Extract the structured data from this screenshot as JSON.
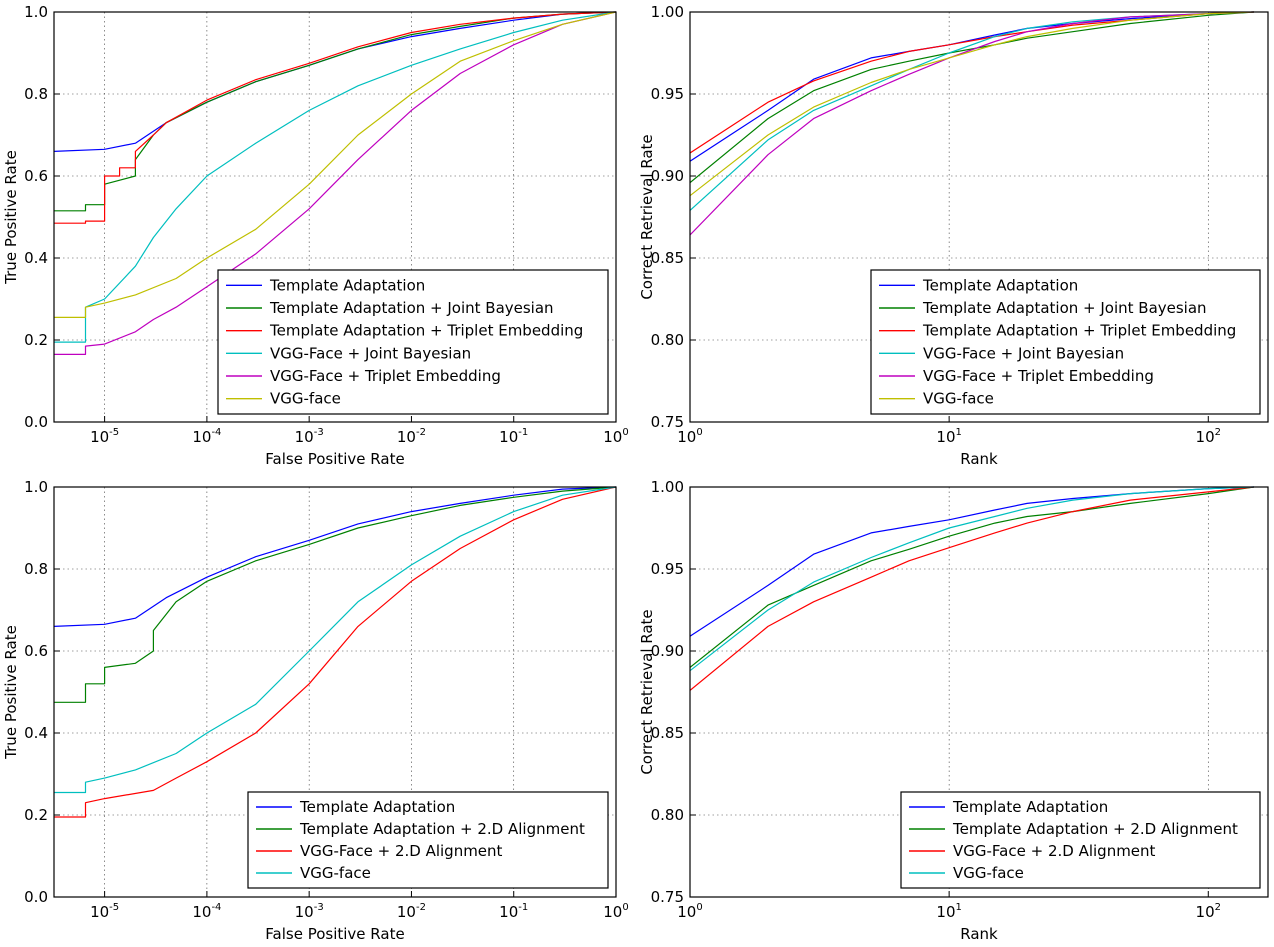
{
  "chart_data": [
    {
      "id": "roc-top",
      "type": "line",
      "xscale": "log",
      "xlim": [
        3.2e-06,
        1
      ],
      "ylim": [
        0,
        1
      ],
      "xticks": [
        {
          "base": "10",
          "exp": "-5"
        },
        {
          "base": "10",
          "exp": "-4"
        },
        {
          "base": "10",
          "exp": "-3"
        },
        {
          "base": "10",
          "exp": "-2"
        },
        {
          "base": "10",
          "exp": "-1"
        },
        {
          "base": "10",
          "exp": "0"
        }
      ],
      "yticks": [
        "0.0",
        "0.2",
        "0.4",
        "0.6",
        "0.8",
        "1.0"
      ],
      "xlabel": "False Positive Rate",
      "ylabel": "True Positive Rate",
      "grid": true,
      "legend": "lower right",
      "series": [
        {
          "name": "Template Adaptation",
          "color": "#0000ff",
          "x": [
            3.2e-06,
            1e-05,
            2e-05,
            4e-05,
            0.0001,
            0.0003,
            0.001,
            0.003,
            0.01,
            0.03,
            0.1,
            0.3,
            1
          ],
          "y": [
            0.66,
            0.665,
            0.68,
            0.73,
            0.78,
            0.83,
            0.87,
            0.91,
            0.94,
            0.96,
            0.98,
            0.995,
            1.0
          ]
        },
        {
          "name": "Template Adaptation + Joint Bayesian",
          "color": "#008000",
          "x": [
            3.2e-06,
            6.5e-06,
            6.5e-06,
            1e-05,
            1e-05,
            2e-05,
            2e-05,
            3e-05,
            4e-05,
            0.0001,
            0.0003,
            0.001,
            0.003,
            0.01,
            0.03,
            0.1,
            0.3,
            1
          ],
          "y": [
            0.515,
            0.515,
            0.53,
            0.53,
            0.58,
            0.6,
            0.64,
            0.7,
            0.73,
            0.78,
            0.83,
            0.87,
            0.91,
            0.945,
            0.965,
            0.985,
            0.995,
            1.0
          ]
        },
        {
          "name": "Template Adaptation + Triplet Embedding",
          "color": "#ff0000",
          "x": [
            3.2e-06,
            6.5e-06,
            6.5e-06,
            1e-05,
            1e-05,
            1.4e-05,
            1.4e-05,
            2e-05,
            2e-05,
            3e-05,
            4e-05,
            0.0001,
            0.0003,
            0.001,
            0.003,
            0.01,
            0.03,
            0.1,
            0.3,
            1
          ],
          "y": [
            0.485,
            0.485,
            0.49,
            0.49,
            0.6,
            0.6,
            0.62,
            0.62,
            0.66,
            0.7,
            0.73,
            0.785,
            0.835,
            0.875,
            0.915,
            0.95,
            0.97,
            0.985,
            0.995,
            1.0
          ]
        },
        {
          "name": "VGG-Face + Joint Bayesian",
          "color": "#00bfbf",
          "x": [
            3.2e-06,
            6.5e-06,
            6.5e-06,
            1e-05,
            2e-05,
            3e-05,
            5e-05,
            0.0001,
            0.0003,
            0.001,
            0.003,
            0.01,
            0.03,
            0.1,
            0.3,
            1
          ],
          "y": [
            0.195,
            0.195,
            0.28,
            0.3,
            0.38,
            0.45,
            0.52,
            0.6,
            0.68,
            0.76,
            0.82,
            0.87,
            0.91,
            0.95,
            0.98,
            1.0
          ]
        },
        {
          "name": "VGG-Face + Triplet Embedding",
          "color": "#bf00bf",
          "x": [
            3.2e-06,
            6.5e-06,
            6.5e-06,
            1e-05,
            2e-05,
            3e-05,
            5e-05,
            0.0001,
            0.0003,
            0.001,
            0.003,
            0.01,
            0.03,
            0.1,
            0.3,
            1
          ],
          "y": [
            0.165,
            0.165,
            0.185,
            0.19,
            0.22,
            0.25,
            0.28,
            0.33,
            0.41,
            0.52,
            0.64,
            0.76,
            0.85,
            0.92,
            0.97,
            1.0
          ]
        },
        {
          "name": "VGG-face",
          "color": "#bfbf00",
          "x": [
            3.2e-06,
            6.5e-06,
            6.5e-06,
            1e-05,
            2e-05,
            5e-05,
            0.0001,
            0.0003,
            0.001,
            0.003,
            0.01,
            0.03,
            0.1,
            0.3,
            1
          ],
          "y": [
            0.255,
            0.255,
            0.28,
            0.29,
            0.31,
            0.35,
            0.4,
            0.47,
            0.58,
            0.7,
            0.8,
            0.88,
            0.93,
            0.97,
            1.0
          ]
        }
      ]
    },
    {
      "id": "cmc-top",
      "type": "line",
      "xscale": "log",
      "xlim": [
        1,
        170
      ],
      "ylim": [
        0.75,
        1.0
      ],
      "xticks": [
        {
          "base": "10",
          "exp": "0"
        },
        {
          "base": "10",
          "exp": "1"
        },
        {
          "base": "10",
          "exp": "2"
        }
      ],
      "yticks": [
        "0.75",
        "0.80",
        "0.85",
        "0.90",
        "0.95",
        "1.00"
      ],
      "xlabel": "Rank",
      "ylabel": "Correct Retrieval Rate",
      "grid": true,
      "legend": "lower right",
      "series": [
        {
          "name": "Template Adaptation",
          "color": "#0000ff",
          "x": [
            1,
            2,
            3,
            5,
            7,
            10,
            15,
            20,
            30,
            50,
            100,
            150
          ],
          "y": [
            0.909,
            0.94,
            0.959,
            0.972,
            0.976,
            0.98,
            0.986,
            0.99,
            0.993,
            0.996,
            0.999,
            1.0
          ]
        },
        {
          "name": "Template Adaptation + Joint Bayesian",
          "color": "#008000",
          "x": [
            1,
            2,
            3,
            5,
            7,
            10,
            15,
            20,
            30,
            50,
            100,
            150
          ],
          "y": [
            0.896,
            0.935,
            0.952,
            0.965,
            0.97,
            0.975,
            0.98,
            0.984,
            0.988,
            0.993,
            0.998,
            1.0
          ]
        },
        {
          "name": "Template Adaptation + Triplet Embedding",
          "color": "#ff0000",
          "x": [
            1,
            2,
            3,
            5,
            7,
            10,
            15,
            20,
            30,
            50,
            100,
            150
          ],
          "y": [
            0.914,
            0.945,
            0.958,
            0.97,
            0.976,
            0.98,
            0.985,
            0.988,
            0.992,
            0.995,
            0.999,
            1.0
          ]
        },
        {
          "name": "VGG-Face + Joint Bayesian",
          "color": "#00bfbf",
          "x": [
            1,
            2,
            3,
            5,
            7,
            10,
            15,
            20,
            30,
            50,
            100,
            150
          ],
          "y": [
            0.879,
            0.922,
            0.94,
            0.955,
            0.965,
            0.975,
            0.985,
            0.99,
            0.994,
            0.997,
            0.999,
            1.0
          ]
        },
        {
          "name": "VGG-Face + Triplet Embedding",
          "color": "#bf00bf",
          "x": [
            1,
            2,
            3,
            5,
            7,
            10,
            15,
            20,
            30,
            50,
            100,
            150
          ],
          "y": [
            0.864,
            0.913,
            0.935,
            0.952,
            0.962,
            0.972,
            0.982,
            0.988,
            0.993,
            0.997,
            0.999,
            1.0
          ]
        },
        {
          "name": "VGG-face",
          "color": "#bfbf00",
          "x": [
            1,
            2,
            3,
            5,
            7,
            10,
            15,
            20,
            30,
            50,
            100,
            150
          ],
          "y": [
            0.888,
            0.925,
            0.942,
            0.957,
            0.965,
            0.972,
            0.98,
            0.985,
            0.99,
            0.995,
            0.999,
            1.0
          ]
        }
      ]
    },
    {
      "id": "roc-bottom",
      "type": "line",
      "xscale": "log",
      "xlim": [
        3.2e-06,
        1
      ],
      "ylim": [
        0,
        1
      ],
      "xticks": [
        {
          "base": "10",
          "exp": "-5"
        },
        {
          "base": "10",
          "exp": "-4"
        },
        {
          "base": "10",
          "exp": "-3"
        },
        {
          "base": "10",
          "exp": "-2"
        },
        {
          "base": "10",
          "exp": "-1"
        },
        {
          "base": "10",
          "exp": "0"
        }
      ],
      "yticks": [
        "0.0",
        "0.2",
        "0.4",
        "0.6",
        "0.8",
        "1.0"
      ],
      "xlabel": "False Positive Rate",
      "ylabel": "True Positive Rate",
      "grid": true,
      "legend": "lower right",
      "series": [
        {
          "name": "Template Adaptation",
          "color": "#0000ff",
          "x": [
            3.2e-06,
            1e-05,
            2e-05,
            4e-05,
            0.0001,
            0.0003,
            0.001,
            0.003,
            0.01,
            0.03,
            0.1,
            0.3,
            1
          ],
          "y": [
            0.66,
            0.665,
            0.68,
            0.73,
            0.78,
            0.83,
            0.87,
            0.91,
            0.94,
            0.96,
            0.98,
            0.995,
            1.0
          ]
        },
        {
          "name": "Template Adaptation + 2.D Alignment",
          "color": "#008000",
          "x": [
            3.2e-06,
            6.5e-06,
            6.5e-06,
            1e-05,
            1e-05,
            2e-05,
            3e-05,
            3e-05,
            5e-05,
            0.0001,
            0.0003,
            0.001,
            0.003,
            0.01,
            0.03,
            0.1,
            0.3,
            1
          ],
          "y": [
            0.475,
            0.475,
            0.52,
            0.52,
            0.56,
            0.57,
            0.6,
            0.65,
            0.72,
            0.77,
            0.82,
            0.86,
            0.9,
            0.93,
            0.955,
            0.975,
            0.99,
            1.0
          ]
        },
        {
          "name": "VGG-Face + 2.D Alignment",
          "color": "#ff0000",
          "x": [
            3.2e-06,
            6.5e-06,
            6.5e-06,
            1e-05,
            3e-05,
            5e-05,
            0.0001,
            0.0003,
            0.001,
            0.003,
            0.01,
            0.03,
            0.1,
            0.3,
            1
          ],
          "y": [
            0.195,
            0.195,
            0.23,
            0.24,
            0.26,
            0.29,
            0.33,
            0.4,
            0.52,
            0.66,
            0.77,
            0.85,
            0.92,
            0.97,
            1.0
          ]
        },
        {
          "name": "VGG-face",
          "color": "#00bfbf",
          "x": [
            3.2e-06,
            6.5e-06,
            6.5e-06,
            1e-05,
            2e-05,
            5e-05,
            0.0001,
            0.0003,
            0.001,
            0.003,
            0.01,
            0.03,
            0.1,
            0.3,
            1
          ],
          "y": [
            0.255,
            0.255,
            0.28,
            0.29,
            0.31,
            0.35,
            0.4,
            0.47,
            0.6,
            0.72,
            0.81,
            0.88,
            0.94,
            0.98,
            1.0
          ]
        }
      ]
    },
    {
      "id": "cmc-bottom",
      "type": "line",
      "xscale": "log",
      "xlim": [
        1,
        170
      ],
      "ylim": [
        0.75,
        1.0
      ],
      "xticks": [
        {
          "base": "10",
          "exp": "0"
        },
        {
          "base": "10",
          "exp": "1"
        },
        {
          "base": "10",
          "exp": "2"
        }
      ],
      "yticks": [
        "0.75",
        "0.80",
        "0.85",
        "0.90",
        "0.95",
        "1.00"
      ],
      "xlabel": "Rank",
      "ylabel": "Correct Retrieval Rate",
      "grid": true,
      "legend": "lower right",
      "series": [
        {
          "name": "Template Adaptation",
          "color": "#0000ff",
          "x": [
            1,
            2,
            3,
            5,
            7,
            10,
            15,
            20,
            30,
            50,
            100,
            150
          ],
          "y": [
            0.909,
            0.94,
            0.959,
            0.972,
            0.976,
            0.98,
            0.986,
            0.99,
            0.993,
            0.996,
            0.999,
            1.0
          ]
        },
        {
          "name": "Template Adaptation + 2.D Alignment",
          "color": "#008000",
          "x": [
            1,
            2,
            3,
            5,
            7,
            10,
            15,
            20,
            30,
            50,
            100,
            150
          ],
          "y": [
            0.89,
            0.928,
            0.94,
            0.955,
            0.962,
            0.97,
            0.978,
            0.982,
            0.985,
            0.99,
            0.996,
            1.0
          ]
        },
        {
          "name": "VGG-Face + 2.D Alignment",
          "color": "#ff0000",
          "x": [
            1,
            2,
            3,
            5,
            7,
            10,
            15,
            20,
            30,
            50,
            100,
            150
          ],
          "y": [
            0.876,
            0.915,
            0.93,
            0.945,
            0.955,
            0.963,
            0.972,
            0.978,
            0.985,
            0.992,
            0.997,
            1.0
          ]
        },
        {
          "name": "VGG-face",
          "color": "#00bfbf",
          "x": [
            1,
            2,
            3,
            5,
            7,
            10,
            15,
            20,
            30,
            50,
            100,
            150
          ],
          "y": [
            0.888,
            0.925,
            0.942,
            0.957,
            0.966,
            0.975,
            0.982,
            0.987,
            0.992,
            0.996,
            0.999,
            1.0
          ]
        }
      ]
    }
  ]
}
